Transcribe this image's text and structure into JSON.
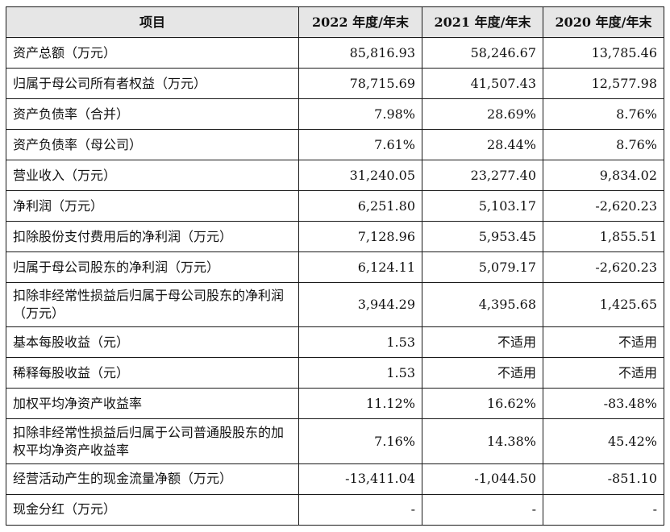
{
  "table": {
    "headers": [
      "项目",
      "2022 年度/年末",
      "2021 年度/年末",
      "2020 年度/年末"
    ],
    "rows": [
      {
        "label": "资产总额（万元）",
        "values": [
          "85,816.93",
          "58,246.67",
          "13,785.46"
        ]
      },
      {
        "label": "归属于母公司所有者权益（万元）",
        "values": [
          "78,715.69",
          "41,507.43",
          "12,577.98"
        ]
      },
      {
        "label": "资产负债率（合并）",
        "values": [
          "7.98%",
          "28.69%",
          "8.76%"
        ]
      },
      {
        "label": "资产负债率（母公司）",
        "values": [
          "7.61%",
          "28.44%",
          "8.76%"
        ]
      },
      {
        "label": "营业收入（万元）",
        "values": [
          "31,240.05",
          "23,277.40",
          "9,834.02"
        ]
      },
      {
        "label": "净利润（万元）",
        "values": [
          "6,251.80",
          "5,103.17",
          "-2,620.23"
        ]
      },
      {
        "label": "扣除股份支付费用后的净利润（万元）",
        "values": [
          "7,128.96",
          "5,953.45",
          "1,855.51"
        ]
      },
      {
        "label": "归属于母公司股东的净利润（万元）",
        "values": [
          "6,124.11",
          "5,079.17",
          "-2,620.23"
        ]
      },
      {
        "label": "扣除非经常性损益后归属于母公司股东的净利润（万元）",
        "values": [
          "3,944.29",
          "4,395.68",
          "1,425.65"
        ]
      },
      {
        "label": "基本每股收益（元）",
        "values": [
          "1.53",
          "不适用",
          "不适用"
        ]
      },
      {
        "label": "稀释每股收益（元）",
        "values": [
          "1.53",
          "不适用",
          "不适用"
        ]
      },
      {
        "label": "加权平均净资产收益率",
        "values": [
          "11.12%",
          "16.62%",
          "-83.48%"
        ]
      },
      {
        "label": "扣除非经常性损益后归属于公司普通股股东的加权平均净资产收益率",
        "values": [
          "7.16%",
          "14.38%",
          "45.42%"
        ]
      },
      {
        "label": "经营活动产生的现金流量净额（万元）",
        "values": [
          "-13,411.04",
          "-1,044.50",
          "-851.10"
        ]
      },
      {
        "label": "现金分红（万元）",
        "values": [
          "-",
          "-",
          "-"
        ]
      }
    ]
  }
}
